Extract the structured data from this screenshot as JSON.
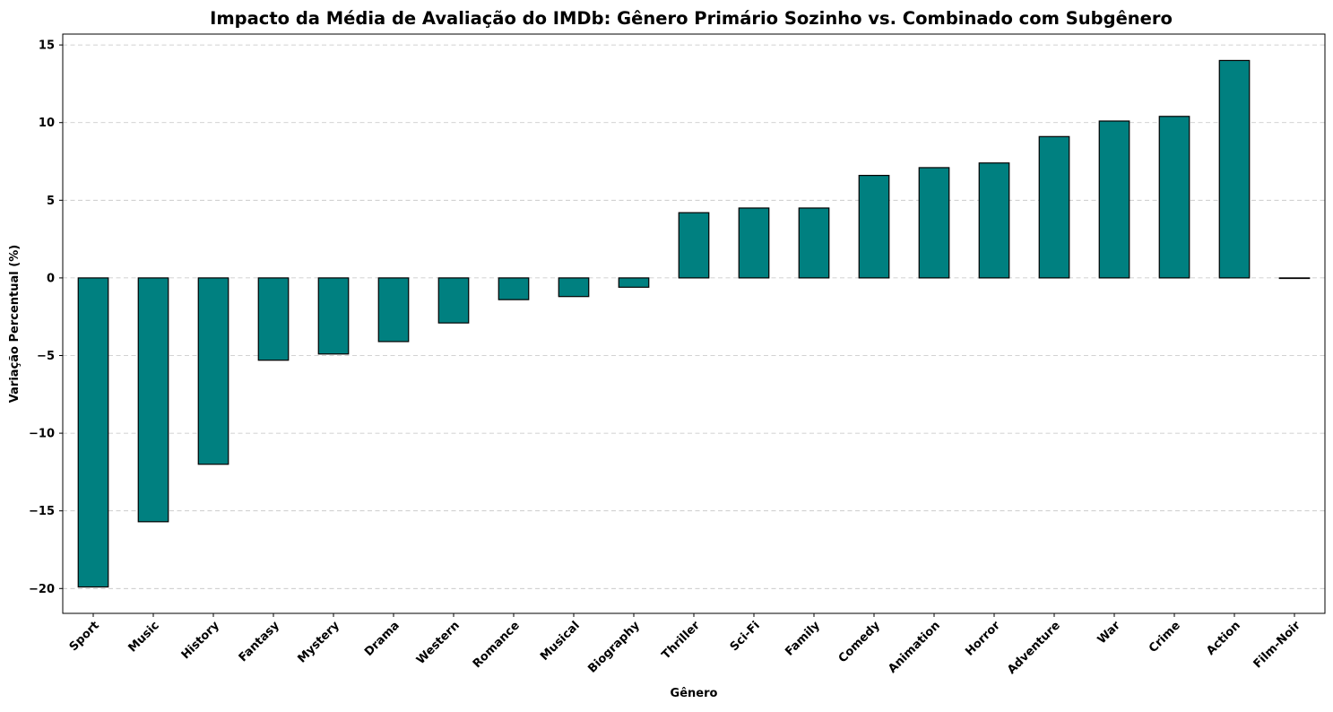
{
  "chart_data": {
    "type": "bar",
    "title": "Impacto da Média de Avaliação do IMDb: Gênero Primário Sozinho vs. Combinado com Subgênero",
    "xlabel": "Gênero",
    "ylabel": "Variação Percentual (%)",
    "categories": [
      "Sport",
      "Music",
      "History",
      "Fantasy",
      "Mystery",
      "Drama",
      "Western",
      "Romance",
      "Musical",
      "Biography",
      "Thriller",
      "Sci-Fi",
      "Family",
      "Comedy",
      "Animation",
      "Horror",
      "Adventure",
      "War",
      "Crime",
      "Action",
      "Film-Noir"
    ],
    "values": [
      -19.9,
      -15.7,
      -12.0,
      -5.3,
      -4.9,
      -4.1,
      -2.9,
      -1.4,
      -1.2,
      -0.6,
      4.2,
      4.5,
      4.5,
      6.6,
      7.1,
      7.4,
      9.1,
      10.1,
      10.4,
      14.0,
      0.0
    ],
    "ylim": [
      -21.6,
      15.7
    ],
    "yticks": [
      -20,
      -15,
      -10,
      -5,
      0,
      5,
      10,
      15
    ],
    "grid": "y-axis dashed",
    "bar_color": "#008080",
    "edge_color": "#000000"
  }
}
